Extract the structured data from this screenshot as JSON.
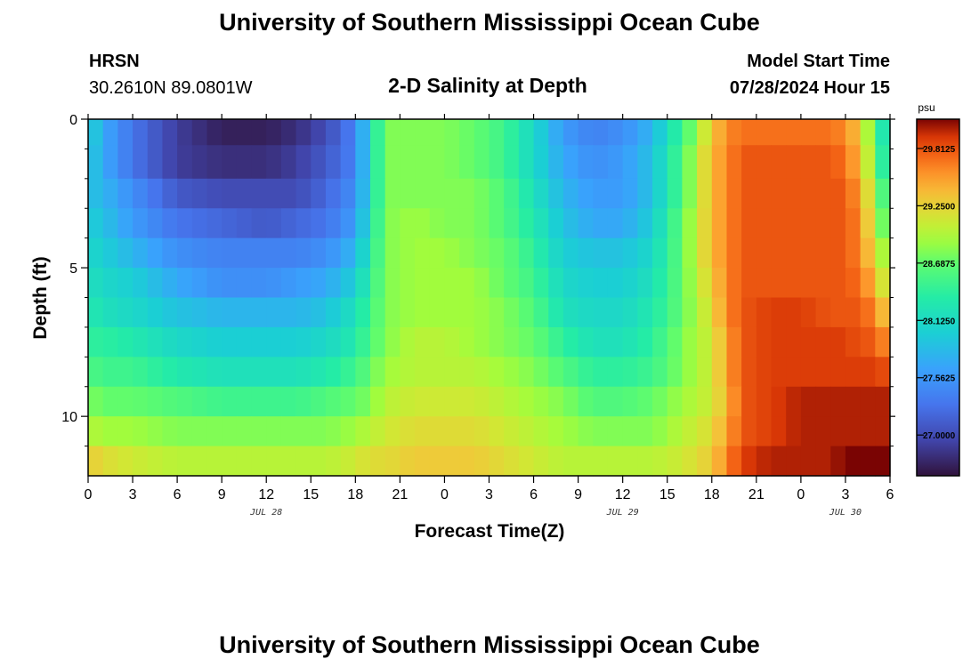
{
  "page": {
    "title": "University of Southern Mississippi Ocean Cube",
    "footer_title": "University of Southern Mississippi Ocean Cube"
  },
  "header": {
    "station": "HRSN",
    "coords": "30.2610N  89.0801W",
    "plot_title": "2-D Salinity at Depth",
    "model_label": "Model Start Time",
    "model_time": "07/28/2024 Hour 15"
  },
  "chart_data": {
    "type": "heatmap",
    "title": "2-D Salinity at Depth",
    "xlabel": "Forecast Time(Z)",
    "ylabel": "Depth (ft)",
    "x_start_hour": 0,
    "x_end_hour": 54,
    "x_step_hours": 1,
    "x_tick_labels": [
      "0",
      "3",
      "6",
      "9",
      "12",
      "15",
      "18",
      "21",
      "0",
      "3",
      "6",
      "9",
      "12",
      "15",
      "18",
      "21",
      "0",
      "3",
      "6"
    ],
    "date_labels": [
      {
        "label": "JUL 28",
        "hour": 12
      },
      {
        "label": "JUL 29",
        "hour": 36
      },
      {
        "label": "JUL 30",
        "hour": 51
      }
    ],
    "ylim": [
      0,
      12
    ],
    "y_levels_ft": [
      0.25,
      1.5,
      2.5,
      3.5,
      4.5,
      5.5,
      6.5,
      7.5,
      8.5,
      9.5,
      10.5,
      11.5
    ],
    "y_tick_labels": [
      {
        "label": "0",
        "value": 0
      },
      {
        "label": "5",
        "value": 5
      },
      {
        "label": "10",
        "value": 10
      }
    ],
    "colorbar": {
      "unit": "psu",
      "min": 26.6,
      "max": 30.1,
      "tick_labels": [
        {
          "label": "29.8125",
          "value": 29.8125
        },
        {
          "label": "29.2500",
          "value": 29.25
        },
        {
          "label": "28.6875",
          "value": 28.6875
        },
        {
          "label": "28.1250",
          "value": 28.125
        },
        {
          "label": "27.5625",
          "value": 27.5625
        },
        {
          "label": "27.0000",
          "value": 27.0
        }
      ]
    },
    "keyframe_hours": [
      0,
      1,
      3,
      6,
      9,
      12,
      14,
      16,
      18,
      19,
      20,
      22,
      24,
      26,
      28,
      30,
      32,
      34,
      36,
      38,
      40,
      42,
      43,
      44,
      46,
      48,
      50,
      51,
      52,
      53,
      54
    ],
    "keyframe_values_by_depth": [
      [
        28.1,
        27.7,
        27.3,
        26.9,
        26.7,
        26.7,
        26.8,
        27.0,
        27.4,
        28.1,
        28.8,
        28.8,
        28.8,
        28.7,
        28.5,
        28.1,
        27.6,
        27.4,
        27.5,
        27.8,
        28.5,
        29.3,
        29.6,
        29.7,
        29.7,
        29.7,
        29.7,
        29.6,
        29.3,
        28.6,
        28.0
      ],
      [
        28.0,
        27.7,
        27.3,
        26.9,
        26.8,
        26.8,
        26.9,
        27.1,
        27.4,
        28.1,
        28.8,
        28.8,
        28.8,
        28.7,
        28.5,
        28.1,
        27.7,
        27.5,
        27.6,
        27.9,
        28.6,
        29.4,
        29.6,
        29.8,
        29.8,
        29.8,
        29.8,
        29.7,
        29.4,
        28.7,
        28.1
      ],
      [
        27.9,
        27.8,
        27.5,
        27.1,
        27.0,
        27.0,
        27.0,
        27.2,
        27.5,
        28.1,
        28.8,
        28.8,
        28.8,
        28.8,
        28.6,
        28.2,
        27.8,
        27.6,
        27.6,
        27.9,
        28.6,
        29.4,
        29.6,
        29.8,
        29.8,
        29.8,
        29.8,
        29.8,
        29.5,
        28.9,
        28.3
      ],
      [
        28.0,
        27.9,
        27.6,
        27.3,
        27.2,
        27.1,
        27.2,
        27.3,
        27.6,
        28.2,
        28.8,
        28.9,
        28.8,
        28.8,
        28.6,
        28.3,
        27.9,
        27.7,
        27.7,
        28.0,
        28.7,
        29.4,
        29.6,
        29.8,
        29.8,
        29.8,
        29.8,
        29.8,
        29.6,
        29.0,
        28.5
      ],
      [
        28.1,
        28.0,
        27.8,
        27.5,
        27.4,
        27.4,
        27.4,
        27.5,
        27.8,
        28.3,
        28.8,
        28.9,
        28.9,
        28.8,
        28.7,
        28.4,
        28.0,
        27.9,
        27.9,
        28.1,
        28.7,
        29.4,
        29.6,
        29.8,
        29.8,
        29.8,
        29.8,
        29.8,
        29.6,
        29.2,
        28.7
      ],
      [
        28.2,
        28.1,
        28.0,
        27.7,
        27.5,
        27.5,
        27.6,
        27.7,
        28.0,
        28.4,
        28.8,
        28.9,
        28.9,
        28.9,
        28.7,
        28.5,
        28.1,
        28.0,
        28.0,
        28.2,
        28.7,
        29.3,
        29.6,
        29.8,
        29.8,
        29.8,
        29.8,
        29.8,
        29.7,
        29.4,
        28.9
      ],
      [
        28.3,
        28.2,
        28.1,
        27.9,
        27.8,
        27.8,
        27.8,
        27.9,
        28.2,
        28.5,
        28.8,
        28.9,
        28.9,
        28.9,
        28.8,
        28.6,
        28.2,
        28.1,
        28.1,
        28.3,
        28.7,
        29.2,
        29.6,
        29.8,
        29.9,
        29.9,
        29.8,
        29.8,
        29.8,
        29.6,
        29.2
      ],
      [
        28.4,
        28.4,
        28.3,
        28.1,
        28.0,
        28.0,
        28.0,
        28.1,
        28.3,
        28.6,
        28.8,
        29.0,
        29.0,
        28.9,
        28.8,
        28.7,
        28.4,
        28.2,
        28.2,
        28.4,
        28.8,
        29.1,
        29.5,
        29.8,
        29.9,
        29.9,
        29.9,
        29.9,
        29.8,
        29.8,
        29.5
      ],
      [
        28.6,
        28.5,
        28.5,
        28.3,
        28.2,
        28.2,
        28.2,
        28.3,
        28.5,
        28.7,
        28.9,
        29.0,
        29.0,
        29.0,
        28.9,
        28.8,
        28.6,
        28.4,
        28.4,
        28.5,
        28.8,
        29.1,
        29.5,
        29.8,
        29.9,
        29.9,
        29.9,
        29.9,
        29.9,
        29.9,
        29.8
      ],
      [
        28.8,
        28.7,
        28.7,
        28.6,
        28.5,
        28.5,
        28.5,
        28.6,
        28.7,
        28.8,
        29.0,
        29.1,
        29.1,
        29.1,
        29.0,
        28.9,
        28.8,
        28.6,
        28.6,
        28.7,
        28.9,
        29.1,
        29.4,
        29.8,
        29.9,
        30.0,
        30.0,
        30.0,
        30.0,
        30.0,
        30.0
      ],
      [
        29.0,
        28.9,
        28.9,
        28.8,
        28.8,
        28.8,
        28.8,
        28.8,
        28.9,
        29.0,
        29.1,
        29.2,
        29.2,
        29.2,
        29.1,
        29.0,
        28.9,
        28.8,
        28.8,
        28.8,
        29.0,
        29.2,
        29.5,
        29.8,
        29.9,
        30.0,
        30.0,
        30.0,
        30.0,
        30.0,
        30.0
      ],
      [
        29.3,
        29.2,
        29.1,
        29.0,
        29.0,
        29.0,
        29.0,
        29.0,
        29.1,
        29.2,
        29.2,
        29.3,
        29.3,
        29.3,
        29.2,
        29.1,
        29.0,
        29.0,
        29.0,
        29.0,
        29.1,
        29.3,
        29.6,
        29.9,
        30.0,
        30.0,
        30.0,
        30.1,
        30.1,
        30.1,
        30.1
      ]
    ]
  }
}
